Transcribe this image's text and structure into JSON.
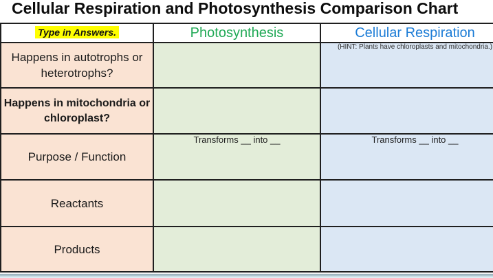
{
  "title": "Cellular Respiration and Photosynthesis Comparison Chart",
  "table": {
    "corner_label": "Type in Answers.",
    "columns": [
      {
        "label": "Photosynthesis",
        "text_color": "#21a956"
      },
      {
        "label": "Cellular Respiration",
        "text_color": "#1c7cd6"
      }
    ],
    "rows": [
      {
        "label": "Happens in autotrophs or heterotrophs?",
        "photosynthesis": "",
        "respiration": "(HINT: Plants have chloroplasts and mitochondria.)"
      },
      {
        "label": "Happens in mitochondria or chloroplast?",
        "photosynthesis": "",
        "respiration": ""
      },
      {
        "label": "Purpose / Function",
        "photosynthesis": "Transforms __ into __",
        "respiration": "Transforms __ into __"
      },
      {
        "label": "Reactants",
        "photosynthesis": "",
        "respiration": ""
      },
      {
        "label": "Products",
        "photosynthesis": "",
        "respiration": ""
      }
    ],
    "colors": {
      "row_label_bg": "#fae3d3",
      "photosynthesis_bg": "#e3edd9",
      "respiration_bg": "#dbe7f4",
      "highlight_bg": "#ffff00",
      "border": "#1f1f1f"
    }
  }
}
